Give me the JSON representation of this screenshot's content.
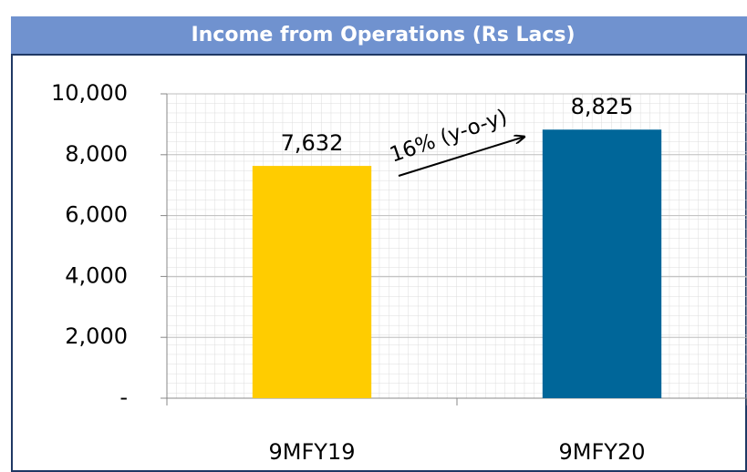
{
  "chart_data": {
    "type": "bar",
    "title": "Income from Operations (Rs Lacs)",
    "categories": [
      "9MFY19",
      "9MFY20"
    ],
    "values": [
      7632,
      8825
    ],
    "value_labels": [
      "7,632",
      "8,825"
    ],
    "colors": [
      "#ffcc00",
      "#006699"
    ],
    "ylim": [
      0,
      10000
    ],
    "yticks": [
      {
        "value": 0,
        "label": "-"
      },
      {
        "value": 2000,
        "label": "2,000"
      },
      {
        "value": 4000,
        "label": "4,000"
      },
      {
        "value": 6000,
        "label": "6,000"
      },
      {
        "value": 8000,
        "label": "8,000"
      },
      {
        "value": 10000,
        "label": "10,000"
      }
    ],
    "grid": true,
    "annotation": "16% (y-o-y)"
  }
}
